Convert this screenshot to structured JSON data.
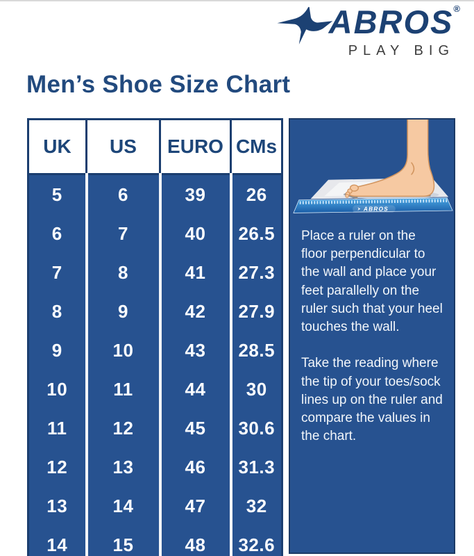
{
  "header": {
    "brand": "ABROS",
    "registered_mark": "®",
    "tagline": "PLAY BIG"
  },
  "title": "Men’s Shoe Size Chart",
  "chart_data": {
    "type": "table",
    "title": "Men’s Shoe Size Chart",
    "columns": [
      "UK",
      "US",
      "EURO",
      "CMs"
    ],
    "rows": [
      [
        "5",
        "6",
        "39",
        "26"
      ],
      [
        "6",
        "7",
        "40",
        "26.5"
      ],
      [
        "7",
        "8",
        "41",
        "27.3"
      ],
      [
        "8",
        "9",
        "42",
        "27.9"
      ],
      [
        "9",
        "10",
        "43",
        "28.5"
      ],
      [
        "10",
        "11",
        "44",
        "30"
      ],
      [
        "11",
        "12",
        "45",
        "30.6"
      ],
      [
        "12",
        "13",
        "46",
        "31.3"
      ],
      [
        "13",
        "14",
        "47",
        "32"
      ],
      [
        "14",
        "15",
        "48",
        "32.6"
      ]
    ]
  },
  "instructions": {
    "paragraph1": "Place a ruler on the floor perpendicular to the wall and place your feet parallelly on the ruler such that your heel touches the wall.",
    "paragraph2": "Take the reading where the tip of your toes/sock lines up on the ruler and compare the values in the chart."
  },
  "illustration": {
    "ruler_brand": "ABROS"
  },
  "colors": {
    "navy": "#275290",
    "navy_border": "#1b3e6f",
    "text_navy": "#224a7e",
    "tagline_gray": "#3d3d3d",
    "white_text": "#f2f6fa",
    "skin": "#f6c9a2",
    "skin_outline": "#d2955f",
    "board_gray": "#e7e8ec",
    "ruler_blue_top": "#4aa7e4",
    "ruler_blue_bottom": "#1a5ca6",
    "arrow_gray": "#8f9093"
  }
}
